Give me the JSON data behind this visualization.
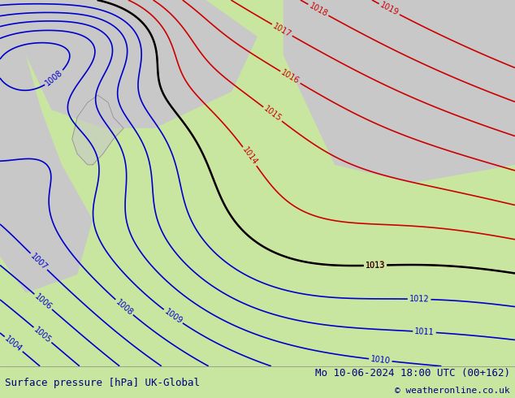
{
  "title_left": "Surface pressure [hPa] UK-Global",
  "title_right": "Mo 10-06-2024 18:00 UTC (00+162)",
  "copyright": "© weatheronline.co.uk",
  "bg_color": "#c8e6a0",
  "land_color": "#c8e6a0",
  "sea_color": "#c8e6a0",
  "gray_region_color": "#d0d0d0",
  "text_color": "#00008b",
  "bottom_bar_color": "#ffffff",
  "blue_contour_color": "#0000cc",
  "red_contour_color": "#cc0000",
  "black_contour_color": "#000000",
  "figsize": [
    6.34,
    4.9
  ],
  "dpi": 100
}
